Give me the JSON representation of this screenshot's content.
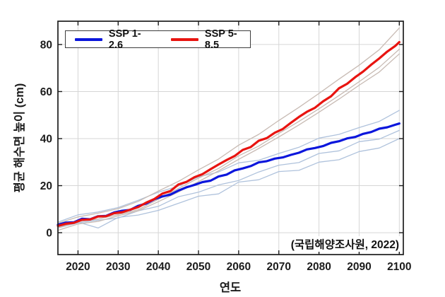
{
  "figure": {
    "background": "#ffffff",
    "annotation": "(국립해양조사원, 2022)",
    "legend": {
      "position": "top-left",
      "entries": [
        {
          "label": "SSP 1-2.6",
          "color": "#0b16dc"
        },
        {
          "label": "SSP 5-8.5",
          "color": "#e81410"
        }
      ]
    }
  },
  "chart_data": {
    "type": "line",
    "title": "",
    "xlabel": "연도",
    "ylabel": "평균 해수면 높이 (cm)",
    "xlim": [
      2015,
      2101
    ],
    "ylim": [
      -9.3,
      89.9
    ],
    "xticks": [
      2020,
      2030,
      2040,
      2050,
      2060,
      2070,
      2080,
      2090,
      2100
    ],
    "yticks": [
      0,
      20,
      40,
      60,
      80
    ],
    "xtick_labels": [
      "2020",
      "2030",
      "2040",
      "2050",
      "2060",
      "2070",
      "2080",
      "2090",
      "2100"
    ],
    "ytick_labels": [
      "0",
      "20",
      "40",
      "60",
      "80"
    ],
    "grid": true,
    "legend_position": "top-left",
    "colors": {
      "grid": "#d6d6d6",
      "axis": "#1c1c1c",
      "ssp126": "#0b16dc",
      "ssp585": "#e81410",
      "ensemble_blue": "#afc2dc",
      "ensemble_gray": "#c8bbb4"
    },
    "series": [
      {
        "name": "SSP 1-2.6 ensemble member 1",
        "role": "ensemble",
        "color": "#afc2dc",
        "width": 1.3,
        "x": [
          2015,
          2020,
          2025,
          2030,
          2035,
          2040,
          2045,
          2050,
          2055,
          2060,
          2065,
          2070,
          2075,
          2080,
          2085,
          2090,
          2095,
          2100
        ],
        "y": [
          4.5,
          7.6,
          8.8,
          10.7,
          13.8,
          17.2,
          19.8,
          23.7,
          25.8,
          29.7,
          30.8,
          33.7,
          36.3,
          40.2,
          41.8,
          44.7,
          47.3,
          52.0
        ]
      },
      {
        "name": "SSP 1-2.6 ensemble member 2",
        "role": "ensemble",
        "color": "#afc2dc",
        "width": 1.3,
        "x": [
          2015,
          2020,
          2025,
          2030,
          2035,
          2040,
          2045,
          2050,
          2055,
          2060,
          2065,
          2070,
          2075,
          2080,
          2085,
          2090,
          2095,
          2100
        ],
        "y": [
          2.0,
          4.2,
          5.3,
          6.2,
          9.3,
          11.2,
          15.3,
          17.2,
          20.3,
          22.2,
          25.8,
          28.7,
          29.8,
          33.7,
          34.8,
          38.7,
          39.8,
          43.5
        ]
      },
      {
        "name": "SSP 1-2.6 ensemble member 3",
        "role": "ensemble",
        "color": "#afc2dc",
        "width": 1.3,
        "x": [
          2015,
          2020,
          2025,
          2030,
          2035,
          2040,
          2045,
          2050,
          2055,
          2060,
          2065,
          2070,
          2075,
          2080,
          2085,
          2090,
          2095,
          2100
        ],
        "y": [
          2.5,
          4.5,
          2.0,
          6.5,
          7.5,
          9.5,
          12.5,
          15.5,
          16.5,
          21.5,
          22.5,
          26.0,
          26.5,
          30.0,
          31.0,
          34.5,
          36.0,
          40.0
        ]
      },
      {
        "name": "SSP 5-8.5 ensemble member 1",
        "role": "ensemble",
        "color": "#c8bbb4",
        "width": 1.3,
        "x": [
          2015,
          2020,
          2025,
          2030,
          2035,
          2040,
          2045,
          2050,
          2055,
          2060,
          2065,
          2070,
          2075,
          2080,
          2085,
          2090,
          2095,
          2100
        ],
        "y": [
          4.0,
          6.7,
          8.3,
          10.2,
          13.3,
          17.7,
          21.8,
          26.7,
          31.3,
          37.2,
          41.8,
          47.7,
          53.3,
          59.2,
          65.3,
          71.2,
          77.8,
          87.0
        ]
      },
      {
        "name": "SSP 5-8.5 ensemble member 2",
        "role": "ensemble",
        "color": "#c8bbb4",
        "width": 1.3,
        "x": [
          2015,
          2020,
          2025,
          2030,
          2035,
          2040,
          2045,
          2050,
          2055,
          2060,
          2065,
          2070,
          2075,
          2080,
          2085,
          2090,
          2095,
          2100
        ],
        "y": [
          2.0,
          4.7,
          5.8,
          7.7,
          9.8,
          14.2,
          18.8,
          23.2,
          27.3,
          32.7,
          36.8,
          42.2,
          47.3,
          52.7,
          58.3,
          64.2,
          70.3,
          78.0
        ]
      },
      {
        "name": "SSP 5-8.5 ensemble member 3",
        "role": "ensemble",
        "color": "#c8bbb4",
        "width": 1.3,
        "x": [
          2015,
          2020,
          2025,
          2030,
          2035,
          2040,
          2045,
          2050,
          2055,
          2060,
          2065,
          2070,
          2075,
          2080,
          2085,
          2090,
          2095,
          2100
        ],
        "y": [
          1.0,
          3.7,
          4.8,
          7.2,
          9.3,
          13.2,
          17.3,
          21.7,
          26.3,
          31.2,
          35.8,
          40.7,
          45.8,
          51.2,
          56.8,
          62.7,
          68.3,
          76.0
        ]
      },
      {
        "name": "SSP 1-2.6",
        "role": "mean",
        "color": "#0b16dc",
        "width": 3.2,
        "x": [
          2015,
          2017,
          2019,
          2021,
          2023,
          2025,
          2027,
          2029,
          2031,
          2033,
          2035,
          2037,
          2039,
          2041,
          2043,
          2045,
          2047,
          2049,
          2051,
          2053,
          2055,
          2057,
          2059,
          2061,
          2063,
          2065,
          2067,
          2069,
          2071,
          2073,
          2075,
          2077,
          2079,
          2081,
          2083,
          2085,
          2087,
          2089,
          2091,
          2093,
          2095,
          2097,
          2099,
          2100
        ],
        "y": [
          3.4,
          4.3,
          4.4,
          5.9,
          5.7,
          7.0,
          7.1,
          8.6,
          9.3,
          9.7,
          11.4,
          12.4,
          14.2,
          15.4,
          16.2,
          17.9,
          19.3,
          20.3,
          21.5,
          22.1,
          23.9,
          24.7,
          26.5,
          27.3,
          28.3,
          29.9,
          30.4,
          31.5,
          32.0,
          33.1,
          34.0,
          35.4,
          36.0,
          36.8,
          38.2,
          38.9,
          40.1,
          40.7,
          42.0,
          42.8,
          44.2,
          44.8,
          45.9,
          46.4
        ]
      },
      {
        "name": "SSP 5-8.5",
        "role": "mean",
        "color": "#e81410",
        "width": 3.2,
        "x": [
          2015,
          2017,
          2019,
          2021,
          2023,
          2025,
          2027,
          2029,
          2031,
          2033,
          2035,
          2037,
          2039,
          2041,
          2043,
          2045,
          2047,
          2049,
          2051,
          2053,
          2055,
          2057,
          2059,
          2061,
          2063,
          2065,
          2067,
          2069,
          2071,
          2073,
          2075,
          2077,
          2079,
          2081,
          2083,
          2085,
          2087,
          2089,
          2091,
          2093,
          2095,
          2097,
          2099,
          2100
        ],
        "y": [
          2.9,
          3.8,
          4.2,
          5.5,
          5.6,
          6.9,
          7.0,
          8.3,
          8.7,
          9.8,
          10.9,
          12.8,
          14.3,
          16.6,
          17.7,
          20.5,
          21.6,
          23.6,
          24.9,
          27.0,
          29.0,
          30.9,
          32.6,
          35.2,
          36.4,
          39.1,
          40.2,
          42.5,
          44.1,
          46.7,
          49.2,
          51.4,
          53.1,
          55.8,
          58.0,
          61.4,
          63.3,
          66.1,
          68.5,
          71.4,
          74.1,
          77.0,
          79.4,
          81.0
        ]
      }
    ]
  }
}
